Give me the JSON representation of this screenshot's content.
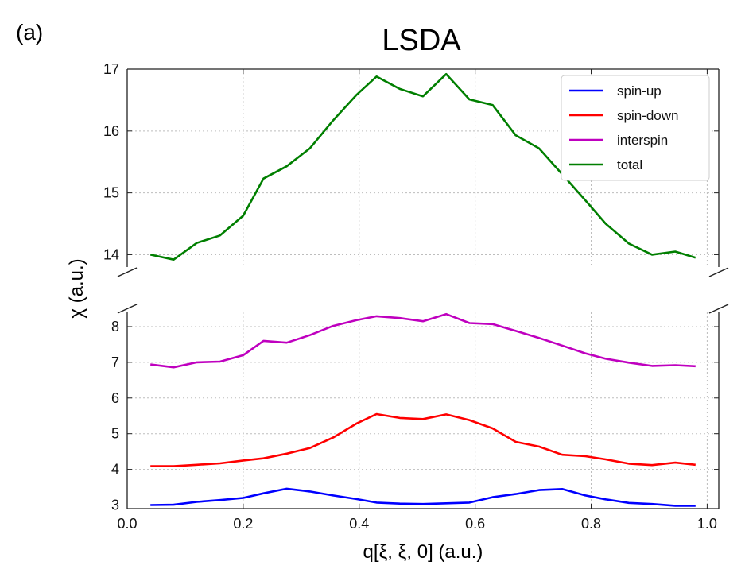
{
  "panel_label": "(a)",
  "chart_data": {
    "type": "line",
    "title": "LSDA",
    "xlabel": "q[ξ, ξ, 0] (a.u.)",
    "ylabel": "χ (a.u.)",
    "xlim": [
      0.0,
      1.02
    ],
    "broken_y_axis": true,
    "ylim_top": [
      13.8,
      17.0
    ],
    "ylim_bottom": [
      2.9,
      8.4
    ],
    "x_ticks": [
      "0.0",
      "0.2",
      "0.4",
      "0.6",
      "0.8",
      "1.0"
    ],
    "y_ticks_top": [
      "14",
      "15",
      "16",
      "17"
    ],
    "y_ticks_bottom": [
      "3",
      "4",
      "5",
      "6",
      "7",
      "8"
    ],
    "grid": true,
    "legend_position": "top-right",
    "x": [
      0.04,
      0.08,
      0.12,
      0.16,
      0.2,
      0.235,
      0.275,
      0.315,
      0.355,
      0.395,
      0.43,
      0.47,
      0.51,
      0.55,
      0.59,
      0.63,
      0.67,
      0.71,
      0.75,
      0.79,
      0.825,
      0.865,
      0.905,
      0.945,
      0.98
    ],
    "series": [
      {
        "name": "spin-up",
        "color": "#0000ff",
        "axis": "bottom",
        "values": [
          3.0,
          3.01,
          3.09,
          3.14,
          3.2,
          3.33,
          3.46,
          3.38,
          3.27,
          3.17,
          3.07,
          3.04,
          3.03,
          3.05,
          3.07,
          3.22,
          3.31,
          3.42,
          3.45,
          3.27,
          3.16,
          3.06,
          3.03,
          2.98,
          2.98
        ]
      },
      {
        "name": "spin-down",
        "color": "#ff0000",
        "axis": "bottom",
        "values": [
          4.09,
          4.09,
          4.13,
          4.17,
          4.25,
          4.31,
          4.44,
          4.6,
          4.89,
          5.28,
          5.55,
          5.44,
          5.41,
          5.54,
          5.38,
          5.15,
          4.77,
          4.64,
          4.41,
          4.37,
          4.28,
          4.16,
          4.12,
          4.19,
          4.13
        ]
      },
      {
        "name": "interspin",
        "color": "#bf00bf",
        "axis": "bottom",
        "values": [
          6.94,
          6.86,
          7.0,
          7.02,
          7.2,
          7.6,
          7.55,
          7.76,
          8.02,
          8.18,
          8.29,
          8.24,
          8.15,
          8.35,
          8.1,
          8.07,
          7.88,
          7.68,
          7.47,
          7.25,
          7.1,
          6.99,
          6.9,
          6.92,
          6.89
        ]
      },
      {
        "name": "total",
        "color": "#007f00",
        "axis": "top",
        "values": [
          14.0,
          13.92,
          14.19,
          14.31,
          14.63,
          15.23,
          15.43,
          15.72,
          16.17,
          16.58,
          16.88,
          16.68,
          16.56,
          16.92,
          16.51,
          16.42,
          15.93,
          15.72,
          15.3,
          14.88,
          14.5,
          14.18,
          14.0,
          14.05,
          13.95
        ]
      }
    ]
  }
}
